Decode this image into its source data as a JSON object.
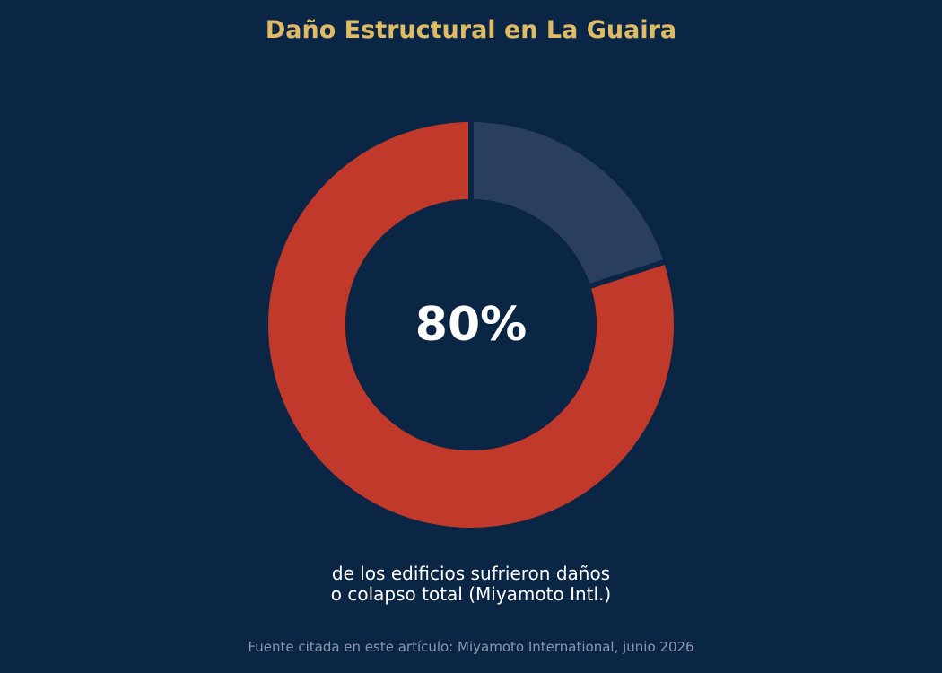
{
  "chart_data": {
    "type": "pie",
    "title": "Daño Estructural en La Guaira",
    "center_label": "80%",
    "slices": [
      {
        "value": 80,
        "color": "#c0392b"
      },
      {
        "value": 20,
        "color": "#2a3f60"
      }
    ],
    "caption_lines": [
      "de los edificios sufrieron daños",
      "o colapso total (Miyamoto Intl.)"
    ],
    "source": "Fuente citada en este artículo: Miyamoto International, junio 2026"
  },
  "colors": {
    "background": "#0b2545",
    "title": "#e0bb66",
    "center_text": "#ffffff",
    "source_text": "#8a98ad"
  }
}
